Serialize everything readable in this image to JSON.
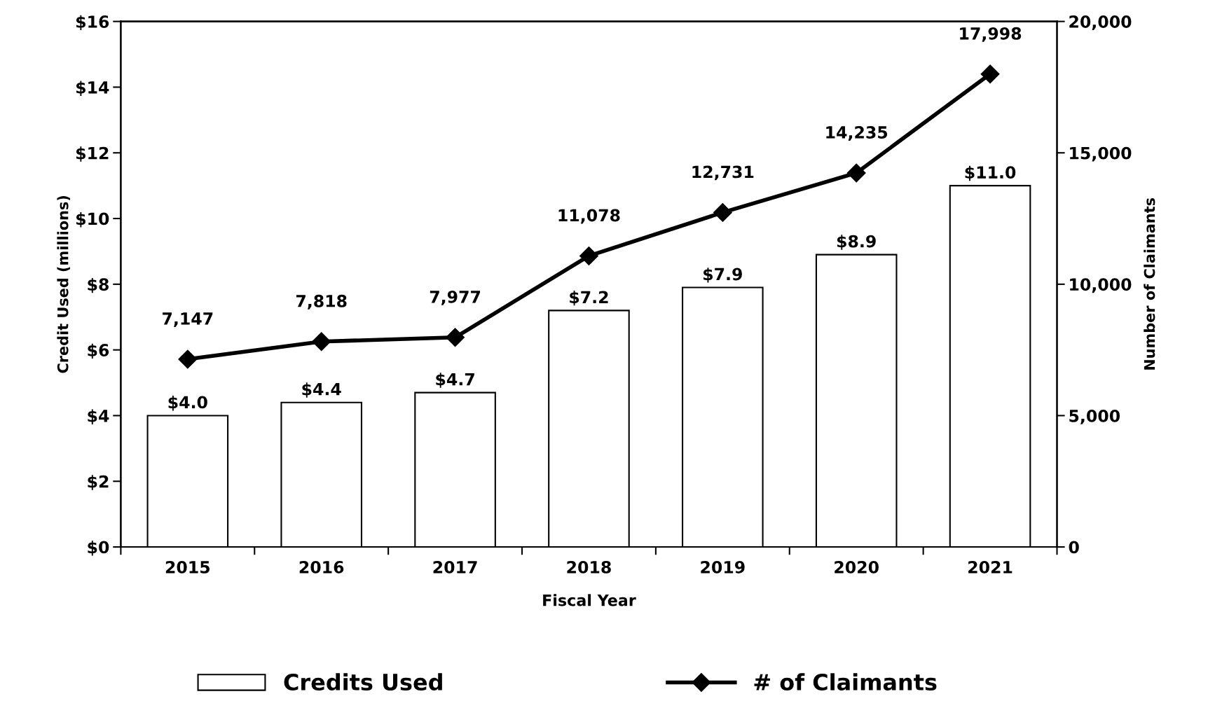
{
  "chart_data": {
    "type": "bar",
    "xlabel": "Fiscal Year",
    "ylabel": "Credit Used (millions)",
    "y2label": "Number of Claimants",
    "categories": [
      "2015",
      "2016",
      "2017",
      "2018",
      "2019",
      "2020",
      "2021"
    ],
    "series": [
      {
        "name": "Credits Used",
        "color": "#ffffff",
        "values": [
          4.0,
          4.4,
          4.7,
          7.2,
          7.9,
          8.9,
          11.0
        ],
        "value_labels": [
          "$4.0",
          "$4.4",
          "$4.7",
          "$7.2",
          "$7.9",
          "$8.9",
          "$11.0"
        ]
      },
      {
        "name": "# of Claimants",
        "type": "line",
        "axis": "y2",
        "color": "#000000",
        "values": [
          7147,
          7818,
          7977,
          11078,
          12731,
          14235,
          17998
        ],
        "value_labels": [
          "7,147",
          "7,818",
          "7,977",
          "11,078",
          "12,731",
          "14,235",
          "17,998"
        ]
      }
    ],
    "ylim": [
      0,
      16
    ],
    "yticks": [
      {
        "value": 0,
        "label": "$0"
      },
      {
        "value": 2,
        "label": "$2"
      },
      {
        "value": 4,
        "label": "$4"
      },
      {
        "value": 6,
        "label": "$6"
      },
      {
        "value": 8,
        "label": "$8"
      },
      {
        "value": 10,
        "label": "$10"
      },
      {
        "value": 12,
        "label": "$12"
      },
      {
        "value": 14,
        "label": "$14"
      },
      {
        "value": 16,
        "label": "$16"
      }
    ],
    "y2lim": [
      0,
      20000
    ],
    "y2ticks": [
      0,
      {
        "value": 5000,
        "label": "5,000"
      },
      {
        "value": 10000,
        "label": "10,000"
      },
      {
        "value": 15000,
        "label": "15,000"
      },
      {
        "value": 20000,
        "label": "20,000"
      }
    ],
    "marker": "diamond",
    "line_style": "solid",
    "grid": false,
    "legend": "bottom"
  }
}
